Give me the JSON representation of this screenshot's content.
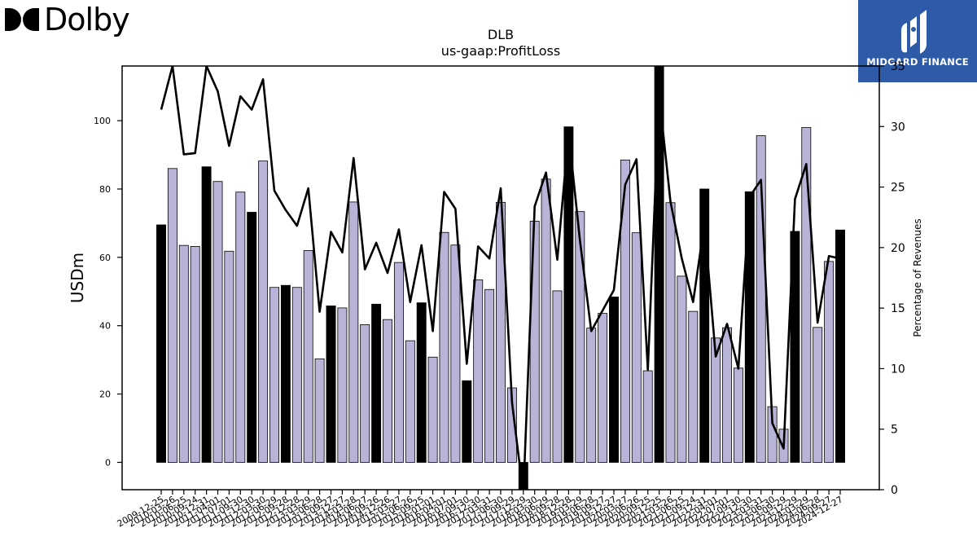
{
  "brand": {
    "logo_text": "Dolby",
    "logo_icon": "dolby-double-d-icon",
    "badge_text": "MIDGARD FINANCE",
    "badge_icon": "midgard-m-icon",
    "badge_color": "#2f5aa8"
  },
  "chart_data": {
    "type": "bar",
    "title": "DLB",
    "subtitle": "us-gaap:ProfitLoss",
    "ylabel": "USDm",
    "ylabel_right": "Percentage of Revenues",
    "ylim": [
      -8,
      116
    ],
    "ylim_right": [
      0,
      35
    ],
    "y_ticks": [
      0,
      20,
      40,
      60,
      80,
      100
    ],
    "y_ticks_right": [
      0,
      5,
      10,
      15,
      20,
      25,
      30,
      35
    ],
    "grid": false,
    "colors": {
      "annual_bar": "#000000",
      "quarter_bar": "#b8b4d8",
      "line": "#000000"
    },
    "categories": [
      "2009-12-25",
      "2010-03-26",
      "2010-06-25",
      "2010-09-24",
      "2010-12-31",
      "2011-04-01",
      "2011-07-01",
      "2011-09-30",
      "2011-12-30",
      "2012-03-30",
      "2012-06-29",
      "2012-09-28",
      "2012-12-28",
      "2013-03-29",
      "2013-06-28",
      "2013-09-27",
      "2013-12-27",
      "2014-03-28",
      "2014-06-27",
      "2014-09-26",
      "2014-12-26",
      "2015-03-27",
      "2015-06-26",
      "2015-09-25",
      "2016-01-01",
      "2016-04-01",
      "2016-07-01",
      "2016-09-30",
      "2016-12-30",
      "2017-03-31",
      "2017-06-30",
      "2017-09-29",
      "2017-12-29",
      "2018-03-30",
      "2018-06-29",
      "2018-09-28",
      "2018-12-28",
      "2019-03-29",
      "2019-06-28",
      "2019-09-27",
      "2019-12-27",
      "2020-03-27",
      "2020-06-26",
      "2020-09-25",
      "2020-12-25",
      "2021-03-26",
      "2021-06-25",
      "2021-09-24",
      "2021-12-31",
      "2022-04-01",
      "2022-07-01",
      "2022-09-30",
      "2022-12-30",
      "2023-03-31",
      "2023-06-30",
      "2023-09-29",
      "2023-12-29",
      "2024-03-29",
      "2024-06-28",
      "2024-09-27",
      "2024-12-27"
    ],
    "series": [
      {
        "kind": "bar",
        "axis": "left",
        "values": [
          69.5,
          86,
          63.5,
          63.2,
          86.5,
          82.2,
          61.8,
          79.1,
          73.2,
          88.2,
          51.2,
          51.8,
          51.2,
          62,
          30.3,
          45.8,
          45.2,
          76.2,
          40.3,
          46.3,
          41.8,
          58.5,
          35.6,
          46.7,
          30.8,
          67.3,
          63.6,
          23.9,
          53.4,
          50.6,
          76.1,
          21.8,
          -8,
          70.6,
          82.9,
          50.2,
          98.2,
          73.4,
          39.3,
          43.6,
          48.4,
          88.5,
          67.2,
          26.8,
          116,
          76,
          54.5,
          44.2,
          80,
          36.4,
          39.4,
          27.6,
          79.2,
          95.6,
          16.3,
          9.7,
          67.6,
          98,
          39.5,
          58.8,
          68
        ],
        "annual": [
          true,
          false,
          false,
          false,
          true,
          false,
          false,
          false,
          true,
          false,
          false,
          true,
          false,
          false,
          false,
          true,
          false,
          false,
          false,
          true,
          false,
          false,
          false,
          true,
          false,
          false,
          false,
          true,
          false,
          false,
          false,
          false,
          true,
          false,
          false,
          false,
          true,
          false,
          false,
          false,
          true,
          false,
          false,
          false,
          true,
          false,
          false,
          false,
          true,
          false,
          false,
          false,
          true,
          false,
          false,
          false,
          true,
          false,
          false,
          false,
          true
        ]
      },
      {
        "kind": "line",
        "axis": "right",
        "values": [
          31.4,
          35.4,
          27.7,
          27.8,
          35.8,
          32.9,
          28.4,
          32.5,
          31.4,
          33.9,
          24.7,
          23.1,
          21.8,
          24.9,
          14.7,
          21.3,
          19.6,
          27.4,
          18.2,
          20.4,
          17.9,
          21.5,
          15.5,
          20.2,
          13.1,
          24.6,
          23.2,
          10.4,
          20.1,
          19.1,
          24.9,
          7.2,
          -5,
          23.4,
          26.2,
          19,
          29.5,
          20.6,
          13.1,
          14.8,
          16.5,
          25.2,
          27.3,
          9.9,
          32.6,
          23.8,
          19.1,
          15.5,
          22,
          11,
          13.7,
          10,
          24.2,
          25.6,
          5.5,
          3.4,
          24,
          26.9,
          13.8,
          19.3,
          19.1
        ]
      }
    ]
  }
}
